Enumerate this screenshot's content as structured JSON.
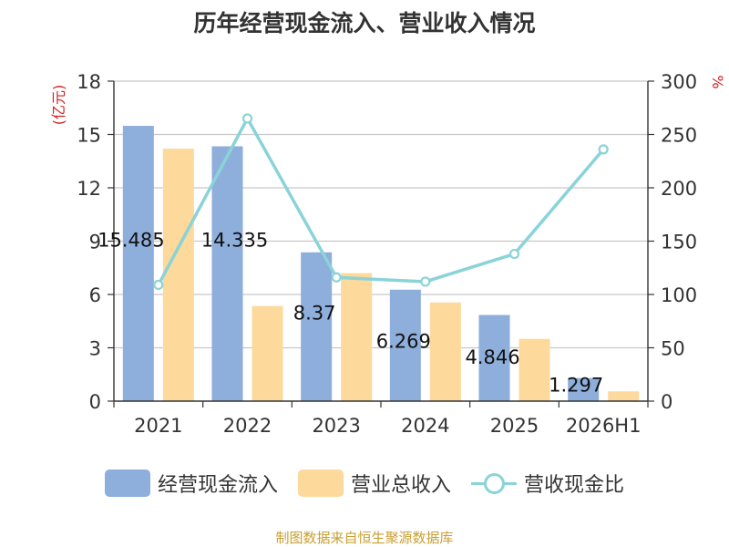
{
  "chart_data": {
    "type": "bar",
    "title": "历年经营现金流入、营业收入情况",
    "categories": [
      "2021",
      "2022",
      "2023",
      "2024",
      "2025",
      "2026H1"
    ],
    "series": [
      {
        "name": "经营现金流入",
        "axis": "left",
        "kind": "bar",
        "color": "#8eaedb",
        "values": [
          15.485,
          14.335,
          8.37,
          6.269,
          4.846,
          1.297
        ]
      },
      {
        "name": "营业总收入",
        "axis": "left",
        "kind": "bar",
        "color": "#fdd99b",
        "values": [
          14.2,
          5.35,
          7.2,
          5.55,
          3.5,
          0.55
        ]
      },
      {
        "name": "营收现金比",
        "axis": "right",
        "kind": "line",
        "color": "#8ad3d8",
        "values": [
          109,
          265,
          116,
          112,
          138,
          236
        ]
      }
    ],
    "data_labels": [
      "15.485",
      "14.335",
      "8.37",
      "6.269",
      "4.846",
      "1.297"
    ],
    "y_left": {
      "label": "(亿元)",
      "min": 0,
      "max": 18,
      "ticks": [
        "0",
        "3",
        "6",
        "9",
        "12",
        "15",
        "18"
      ]
    },
    "y_right": {
      "label": "%",
      "min": 0,
      "max": 300,
      "ticks": [
        "0",
        "50",
        "100",
        "150",
        "200",
        "250",
        "300"
      ]
    },
    "grid": true,
    "legend_position": "bottom"
  },
  "footer": {
    "source": "制图数据来自恒生聚源数据库"
  }
}
